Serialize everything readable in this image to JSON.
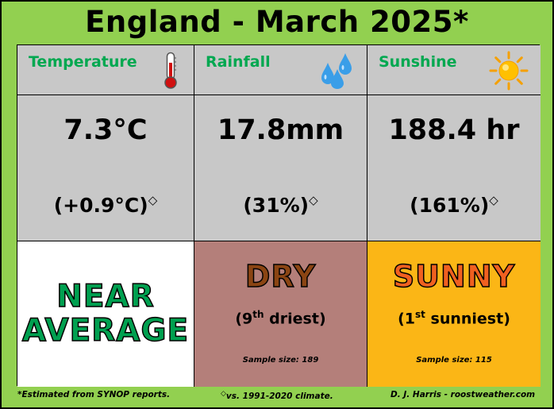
{
  "title": "England - March 2025*",
  "headers": {
    "temperature": "Temperature",
    "rainfall": "Rainfall",
    "sunshine": "Sunshine"
  },
  "values": {
    "temperature": "7.3°C",
    "temperature_anomaly": "(+0.9°C)",
    "rainfall": "17.8mm",
    "rainfall_anomaly": "(31%)",
    "sunshine": "188.4 hr",
    "sunshine_anomaly": "(161%)",
    "diamond": "◇"
  },
  "categories": {
    "temperature_line1": "NEAR",
    "temperature_line2": "AVERAGE",
    "rainfall": "DRY",
    "rainfall_rank_pre": "(9",
    "rainfall_rank_sup": "th",
    "rainfall_rank_post": " driest)",
    "rainfall_sample": "Sample size: 189",
    "sunshine": "SUNNY",
    "sunshine_rank_pre": "(1",
    "sunshine_rank_sup": "st",
    "sunshine_rank_post": " sunniest)",
    "sunshine_sample": "Sample size: 115"
  },
  "footer": {
    "note": "*Estimated from SYNOP reports.",
    "climate_symbol": "◇",
    "climate": "vs. 1991-2020 climate.",
    "credit": "D. J. Harris - roostweather.com"
  },
  "icons": {
    "temperature": "thermometer-icon",
    "rainfall": "raindrops-icon",
    "sunshine": "sun-icon"
  },
  "colors": {
    "background": "#92d050",
    "header_text": "#00a850",
    "panel": "#c8c8c8",
    "dry": "#b47f7a",
    "sunny": "#fbb616",
    "near_average_text": "#00a050",
    "dry_text": "#8b4513",
    "sunny_text": "#f06020"
  }
}
